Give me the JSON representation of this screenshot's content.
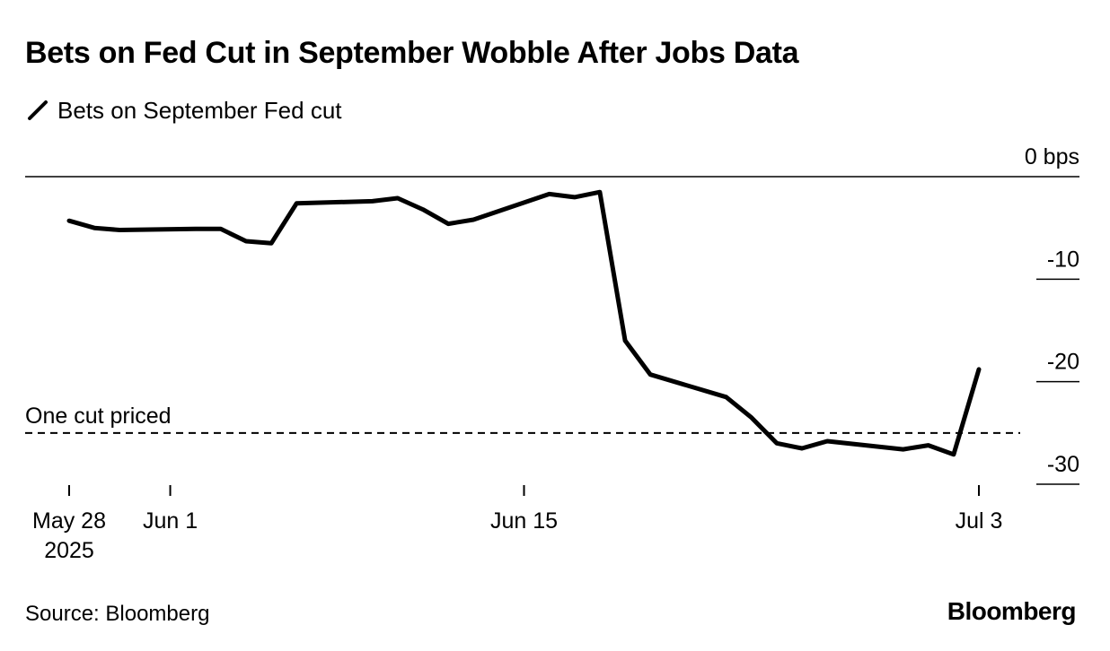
{
  "title": "Bets on Fed Cut in September Wobble After Jobs Data",
  "legend": {
    "label": "Bets on September Fed cut",
    "icon": "diagonal-line-icon"
  },
  "source": "Source: Bloomberg",
  "brand": "Bloomberg",
  "colors": {
    "line": "#000000",
    "axis": "#000000",
    "background": "#ffffff"
  },
  "chart_data": {
    "type": "line",
    "title": "Bets on Fed Cut in September Wobble After Jobs Data",
    "xlabel": "",
    "ylabel": "",
    "ylim": [
      -30,
      0
    ],
    "xlim": [
      "2025-05-26",
      "2025-07-04"
    ],
    "y_axis_position": "right",
    "y_unit_label": "0 bps",
    "yticks": [
      {
        "value": 0,
        "label": "0 bps"
      },
      {
        "value": -10,
        "label": "-10"
      },
      {
        "value": -20,
        "label": "-20"
      },
      {
        "value": -30,
        "label": "-30"
      }
    ],
    "xticks": [
      {
        "date": "2025-05-28",
        "label": "May 28",
        "sublabel": "2025"
      },
      {
        "date": "2025-06-01",
        "label": "Jun 1",
        "sublabel": ""
      },
      {
        "date": "2025-06-15",
        "label": "Jun 15",
        "sublabel": ""
      },
      {
        "date": "2025-07-03",
        "label": "Jul 3",
        "sublabel": ""
      }
    ],
    "grid": false,
    "legend_position": "top-left",
    "reference_lines": [
      {
        "value": -25,
        "label": "One cut priced",
        "style": "dashed"
      }
    ],
    "series": [
      {
        "name": "Bets on September Fed cut",
        "points": [
          {
            "x": "2025-05-28",
            "y": -4.3
          },
          {
            "x": "2025-05-29",
            "y": -5.0
          },
          {
            "x": "2025-05-30",
            "y": -5.2
          },
          {
            "x": "2025-06-02",
            "y": -5.1
          },
          {
            "x": "2025-06-03",
            "y": -5.1
          },
          {
            "x": "2025-06-04",
            "y": -6.3
          },
          {
            "x": "2025-06-05",
            "y": -6.5
          },
          {
            "x": "2025-06-06",
            "y": -2.6
          },
          {
            "x": "2025-06-09",
            "y": -2.4
          },
          {
            "x": "2025-06-10",
            "y": -2.1
          },
          {
            "x": "2025-06-11",
            "y": -3.2
          },
          {
            "x": "2025-06-12",
            "y": -4.6
          },
          {
            "x": "2025-06-13",
            "y": -4.2
          },
          {
            "x": "2025-06-16",
            "y": -1.7
          },
          {
            "x": "2025-06-17",
            "y": -2.0
          },
          {
            "x": "2025-06-18",
            "y": -1.5
          },
          {
            "x": "2025-06-19",
            "y": -16.0
          },
          {
            "x": "2025-06-20",
            "y": -19.3
          },
          {
            "x": "2025-06-23",
            "y": -21.5
          },
          {
            "x": "2025-06-24",
            "y": -23.5
          },
          {
            "x": "2025-06-25",
            "y": -26.0
          },
          {
            "x": "2025-06-26",
            "y": -26.5
          },
          {
            "x": "2025-06-27",
            "y": -25.8
          },
          {
            "x": "2025-06-30",
            "y": -26.6
          },
          {
            "x": "2025-07-01",
            "y": -26.2
          },
          {
            "x": "2025-07-02",
            "y": -27.1
          },
          {
            "x": "2025-07-03",
            "y": -18.8
          }
        ]
      }
    ]
  }
}
